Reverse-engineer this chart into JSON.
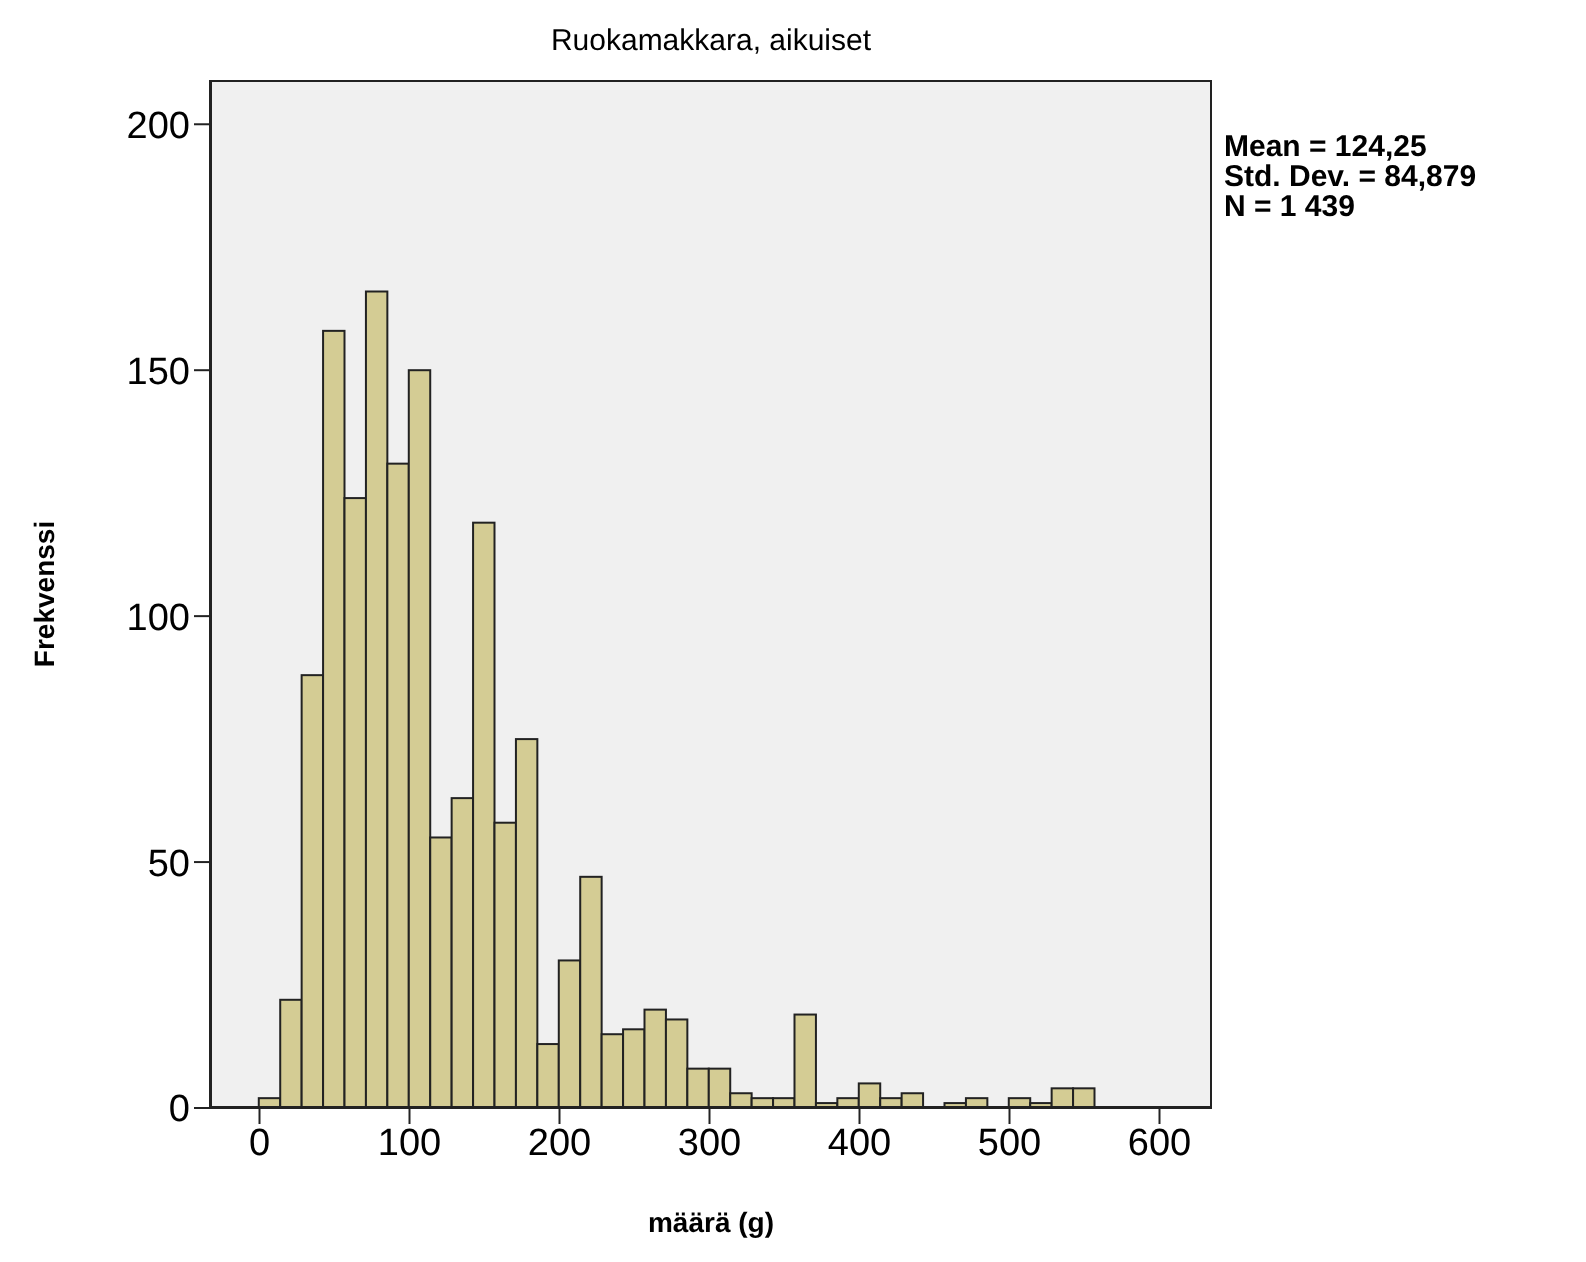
{
  "chart_data": {
    "type": "histogram",
    "title": "Ruokamakkara, aikuiset",
    "xlabel": "määrä (g)",
    "ylabel": "Frekvenssi",
    "annotations": [
      "Mean = 124,25",
      "Std. Dev. = 84,879",
      "N = 1 439"
    ],
    "bins": [
      0,
      14.29,
      28.57,
      42.86,
      57.14,
      71.43,
      85.71,
      100,
      114.29,
      128.57,
      142.86,
      157.14,
      171.43,
      185.71,
      200,
      214.29,
      228.57,
      242.86,
      257.14,
      271.43,
      285.71,
      300,
      314.29,
      328.57,
      342.86,
      357.14,
      371.43,
      385.71,
      400,
      414.29,
      428.57,
      442.86,
      457.14,
      471.43,
      485.71,
      500,
      514.29,
      528.57,
      542.86,
      557.14
    ],
    "values": [
      2,
      22,
      88,
      158,
      124,
      166,
      131,
      150,
      55,
      63,
      119,
      58,
      75,
      13,
      30,
      47,
      15,
      16,
      20,
      18,
      8,
      8,
      3,
      2,
      2,
      19,
      1,
      2,
      5,
      2,
      3,
      0,
      1,
      2,
      0,
      2,
      1,
      4,
      4
    ],
    "color": "#d4cc94",
    "xlim": [
      -33,
      635
    ],
    "xticks": [
      0,
      100,
      200,
      300,
      400,
      500,
      600
    ],
    "ylim": [
      0,
      209
    ],
    "yticks": [
      0,
      50,
      100,
      150,
      200
    ],
    "grid": false,
    "legend": false
  }
}
